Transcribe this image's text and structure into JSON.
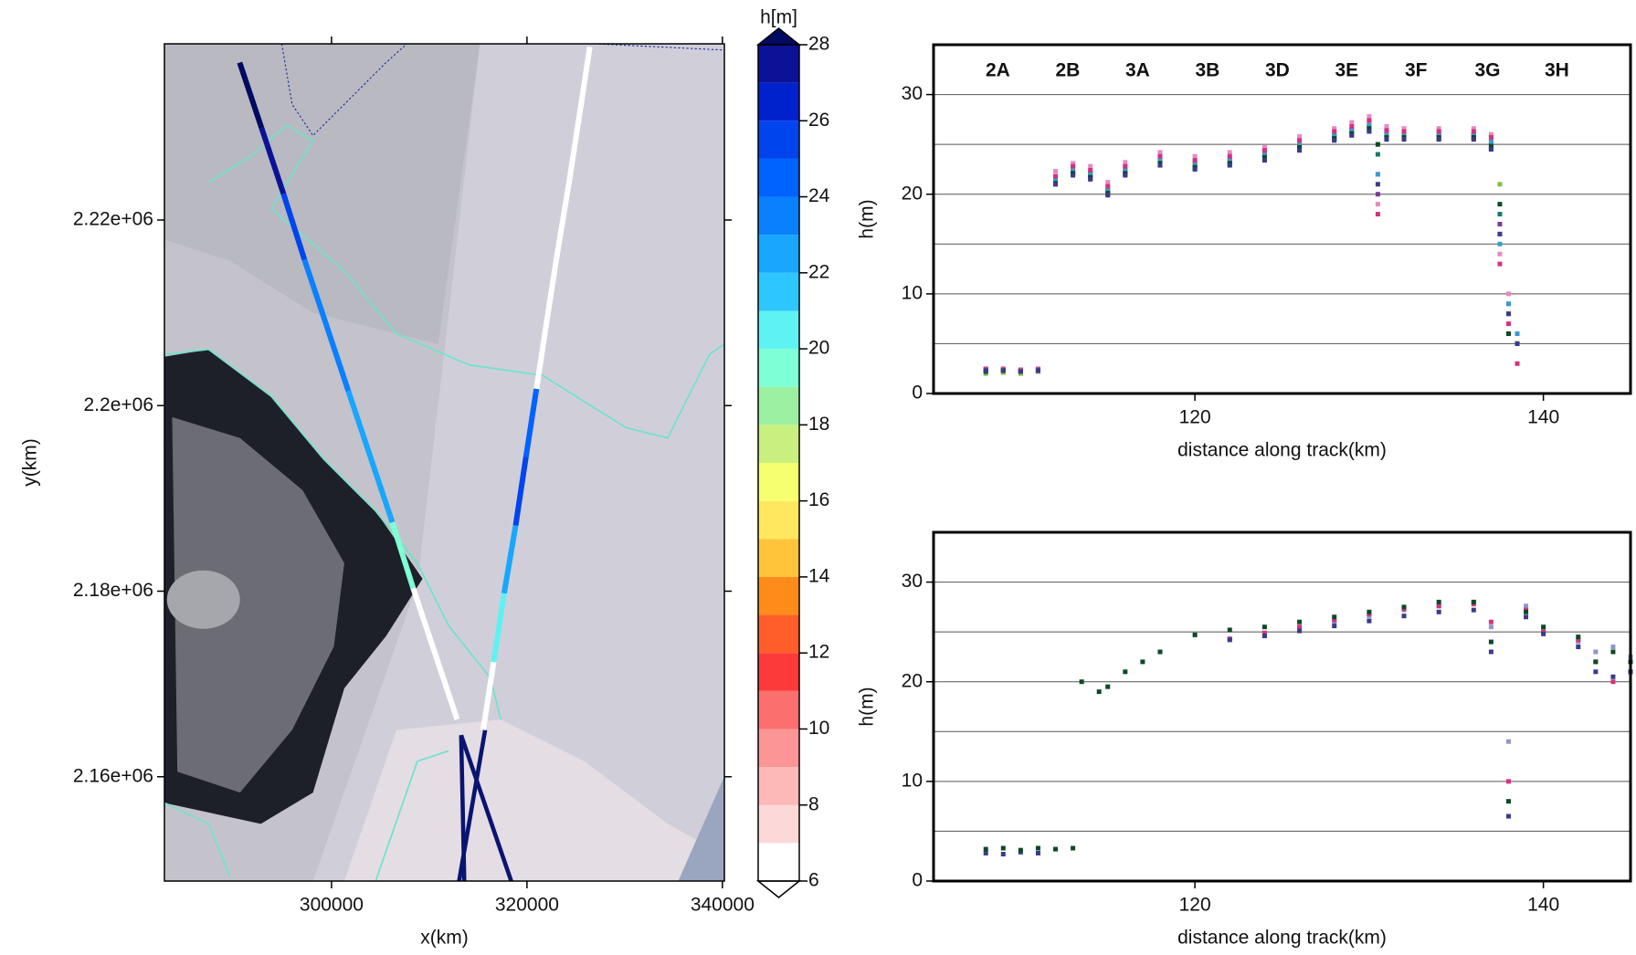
{
  "chart_data": [
    {
      "type": "map",
      "xlabel": "x(km)",
      "ylabel": "y(km)",
      "xlim": [
        282900,
        340200
      ],
      "ylim": [
        2148760,
        2238990
      ],
      "xticks": [
        300000,
        320000,
        340000
      ],
      "yticks": [
        {
          "value": 2160000,
          "label": "2.16e+06"
        },
        {
          "value": 2180000,
          "label": "2.18e+06"
        },
        {
          "value": 2200000,
          "label": "2.2e+06"
        },
        {
          "value": 2220000,
          "label": "2.22e+06"
        }
      ],
      "tracks": [
        {
          "x": [
            290600,
            292850,
            295090,
            297230,
            299480,
            301720,
            303970,
            306220,
            308350,
            310600,
            312850
          ],
          "y": [
            2236970,
            2229890,
            2222810,
            2215730,
            2208650,
            2201570,
            2194500,
            2187420,
            2180340,
            2173260,
            2166180
          ],
          "h": [
            28,
            27,
            25,
            23,
            23,
            22,
            22,
            19,
            6,
            6,
            6
          ]
        },
        {
          "x": [
            326430,
            325360,
            324290,
            323120,
            322040,
            320970,
            319900,
            318840,
            317660,
            316590,
            315520
          ],
          "y": [
            2238650,
            2231240,
            2223930,
            2216520,
            2209210,
            2201800,
            2194500,
            2187080,
            2179770,
            2172360,
            2165050
          ],
          "h": [
            6,
            6,
            6,
            6,
            6,
            24,
            25,
            22,
            21,
            6,
            6
          ]
        }
      ],
      "colorbar": {
        "label": "h[m]",
        "lim": [
          6,
          28
        ],
        "ticks": [
          6,
          8,
          10,
          12,
          14,
          16,
          18,
          20,
          22,
          24,
          26,
          28
        ],
        "colors": [
          "#ffffff",
          "#fcd8d8",
          "#fdb8b8",
          "#fc9595",
          "#fc6f6f",
          "#fd3a3a",
          "#ff5e2a",
          "#ff8c1a",
          "#ffc43a",
          "#ffe860",
          "#f6ff70",
          "#c9f07e",
          "#9cf0a2",
          "#7effd6",
          "#5ff2f2",
          "#2ec6ff",
          "#18a6ff",
          "#0b80ff",
          "#0062ff",
          "#0044ee",
          "#0022cc",
          "#0c1298"
        ],
        "extend_colors": [
          "#ffffff",
          "#000a60"
        ]
      }
    },
    {
      "type": "scatter",
      "xlabel": "distance along track(km)",
      "ylabel": "h(m)",
      "xlim": [
        105,
        145
      ],
      "ylim": [
        0,
        35
      ],
      "xticks": [
        120,
        140
      ],
      "yticks": [
        0,
        10,
        20,
        30
      ],
      "grid_yticks": [
        5,
        10,
        15,
        20,
        25,
        30
      ],
      "grid": true,
      "legend": "top",
      "x": [
        108,
        109,
        110,
        111,
        112,
        113,
        114,
        115,
        116,
        118,
        120,
        122,
        124,
        126,
        128,
        129,
        130,
        130.5,
        131,
        132,
        134,
        136,
        137,
        137.5,
        138,
        138.5
      ],
      "series": [
        {
          "name": "2A",
          "color": "#8f96c8",
          "values": [
            2.5,
            2.4,
            2.4,
            2.4,
            21.7,
            22.6,
            22.2,
            20.6,
            22.7,
            23.6,
            23.2,
            23.6,
            24.2,
            25.2,
            26.1,
            26.6,
            27.2,
            22,
            26.2,
            26.1,
            26.1,
            26.1,
            25.2,
            16,
            9,
            6
          ]
        },
        {
          "name": "2B",
          "color": "#7fc241",
          "values": [
            2.0,
            2.1,
            2.0,
            2.2,
            21.2,
            22.2,
            21.8,
            20.3,
            22.3,
            23.3,
            22.9,
            23.3,
            23.9,
            24.9,
            25.8,
            26.3,
            26.8,
            25,
            25.9,
            25.9,
            25.9,
            25.9,
            25.8,
            21,
            6,
            5
          ]
        },
        {
          "name": "3A",
          "color": "#e889c3",
          "values": [
            2.5,
            2.5,
            2.4,
            2.5,
            22.3,
            23.1,
            22.8,
            21.2,
            23.2,
            24.2,
            23.8,
            24.2,
            24.7,
            25.8,
            26.6,
            27.2,
            27.8,
            19,
            26.8,
            26.6,
            26.6,
            26.6,
            26.0,
            14,
            10,
            5
          ]
        },
        {
          "name": "3B",
          "color": "#7a3a96",
          "values": [
            2.3,
            2.3,
            2.2,
            2.3,
            21.0,
            22.0,
            21.6,
            20.0,
            22.0,
            23.0,
            22.6,
            23.0,
            23.5,
            24.5,
            25.5,
            26.0,
            26.4,
            20,
            25.6,
            25.6,
            25.6,
            25.6,
            24.6,
            17,
            8,
            5
          ]
        },
        {
          "name": "3D",
          "color": "#177a6a",
          "values": [
            2.4,
            2.3,
            2.3,
            2.4,
            21.3,
            22.2,
            21.9,
            20.3,
            22.3,
            23.3,
            22.9,
            23.3,
            23.9,
            24.9,
            25.8,
            26.3,
            26.8,
            24,
            25.9,
            25.9,
            25.9,
            25.9,
            25.0,
            18,
            6,
            5
          ]
        },
        {
          "name": "3E",
          "color": "#3a9bd0",
          "values": [
            2.4,
            2.4,
            2.3,
            2.3,
            21.4,
            22.3,
            22.0,
            20.4,
            22.4,
            23.4,
            23.0,
            23.4,
            24.0,
            25.0,
            25.9,
            26.4,
            26.9,
            22,
            26.0,
            26.0,
            26.0,
            26.0,
            25.3,
            15,
            9,
            6
          ]
        },
        {
          "name": "3F",
          "color": "#d3327f",
          "values": [
            2.4,
            2.4,
            2.3,
            2.4,
            21.8,
            22.8,
            22.4,
            20.8,
            22.8,
            23.8,
            23.4,
            23.8,
            24.4,
            25.4,
            26.3,
            26.8,
            27.4,
            18,
            26.4,
            26.3,
            26.3,
            26.3,
            25.7,
            13,
            7,
            3
          ]
        },
        {
          "name": "3G",
          "color": "#0c4a26",
          "values": [
            2.2,
            2.3,
            2.2,
            2.3,
            21.1,
            22.1,
            21.7,
            20.1,
            22.1,
            23.1,
            22.7,
            23.1,
            23.7,
            24.7,
            25.6,
            26.1,
            26.6,
            25,
            25.7,
            25.7,
            25.7,
            25.7,
            24.8,
            19,
            6,
            5
          ]
        },
        {
          "name": "3H",
          "color": "#3b3b8a",
          "values": [
            2.3,
            2.3,
            2.2,
            2.3,
            21.0,
            21.9,
            21.5,
            19.9,
            21.9,
            22.9,
            22.5,
            22.9,
            23.4,
            24.4,
            25.4,
            25.9,
            26.3,
            21,
            25.5,
            25.5,
            25.5,
            25.5,
            24.5,
            16,
            8,
            5
          ]
        }
      ]
    },
    {
      "type": "scatter",
      "xlabel": "distance along track(km)",
      "ylabel": "h(m)",
      "xlim": [
        105,
        145
      ],
      "ylim": [
        0,
        35
      ],
      "xticks": [
        120,
        140
      ],
      "yticks": [
        0,
        10,
        20,
        30
      ],
      "grid_yticks": [
        5,
        10,
        15,
        20,
        25,
        30
      ],
      "grid": true,
      "x": [
        108,
        109,
        110,
        111,
        112,
        113,
        113.5,
        114.5,
        115,
        116,
        117,
        118,
        120,
        122,
        124,
        126,
        128,
        130,
        132,
        134,
        136,
        137,
        138,
        139,
        140,
        142,
        143,
        144,
        145
      ],
      "series": [
        {
          "color": "#8f96c8",
          "values": [
            null,
            null,
            null,
            null,
            null,
            null,
            null,
            null,
            null,
            null,
            null,
            null,
            null,
            24.3,
            24.8,
            25.4,
            26,
            26.6,
            27.2,
            27.6,
            28,
            25.5,
            14,
            27.6,
            25.2,
            24,
            23,
            23.5,
            22.5
          ]
        },
        {
          "color": "#d3327f",
          "values": [
            null,
            null,
            null,
            null,
            null,
            null,
            null,
            null,
            null,
            null,
            null,
            null,
            null,
            24.3,
            24.9,
            25.5,
            26.2,
            26.8,
            27.3,
            27.6,
            27.8,
            26,
            10,
            27.2,
            25,
            24.2,
            22,
            20,
            21
          ]
        },
        {
          "color": "#3b3b8a",
          "values": [
            2.8,
            2.7,
            2.9,
            2.8,
            null,
            null,
            null,
            null,
            null,
            null,
            null,
            null,
            null,
            24.2,
            24.6,
            25.1,
            25.6,
            26.1,
            26.6,
            27,
            27.2,
            23,
            6.5,
            26.5,
            24.8,
            23.5,
            21,
            20.5,
            21
          ]
        },
        {
          "color": "#0c4a26",
          "values": [
            3.2,
            3.3,
            3.1,
            3.3,
            3.2,
            3.3,
            20,
            19,
            19.5,
            21,
            22,
            23,
            24.7,
            25.2,
            25.5,
            26,
            26.5,
            27,
            27.5,
            28,
            28,
            24,
            8,
            27,
            25.5,
            24.5,
            22,
            23,
            22
          ]
        }
      ]
    }
  ]
}
